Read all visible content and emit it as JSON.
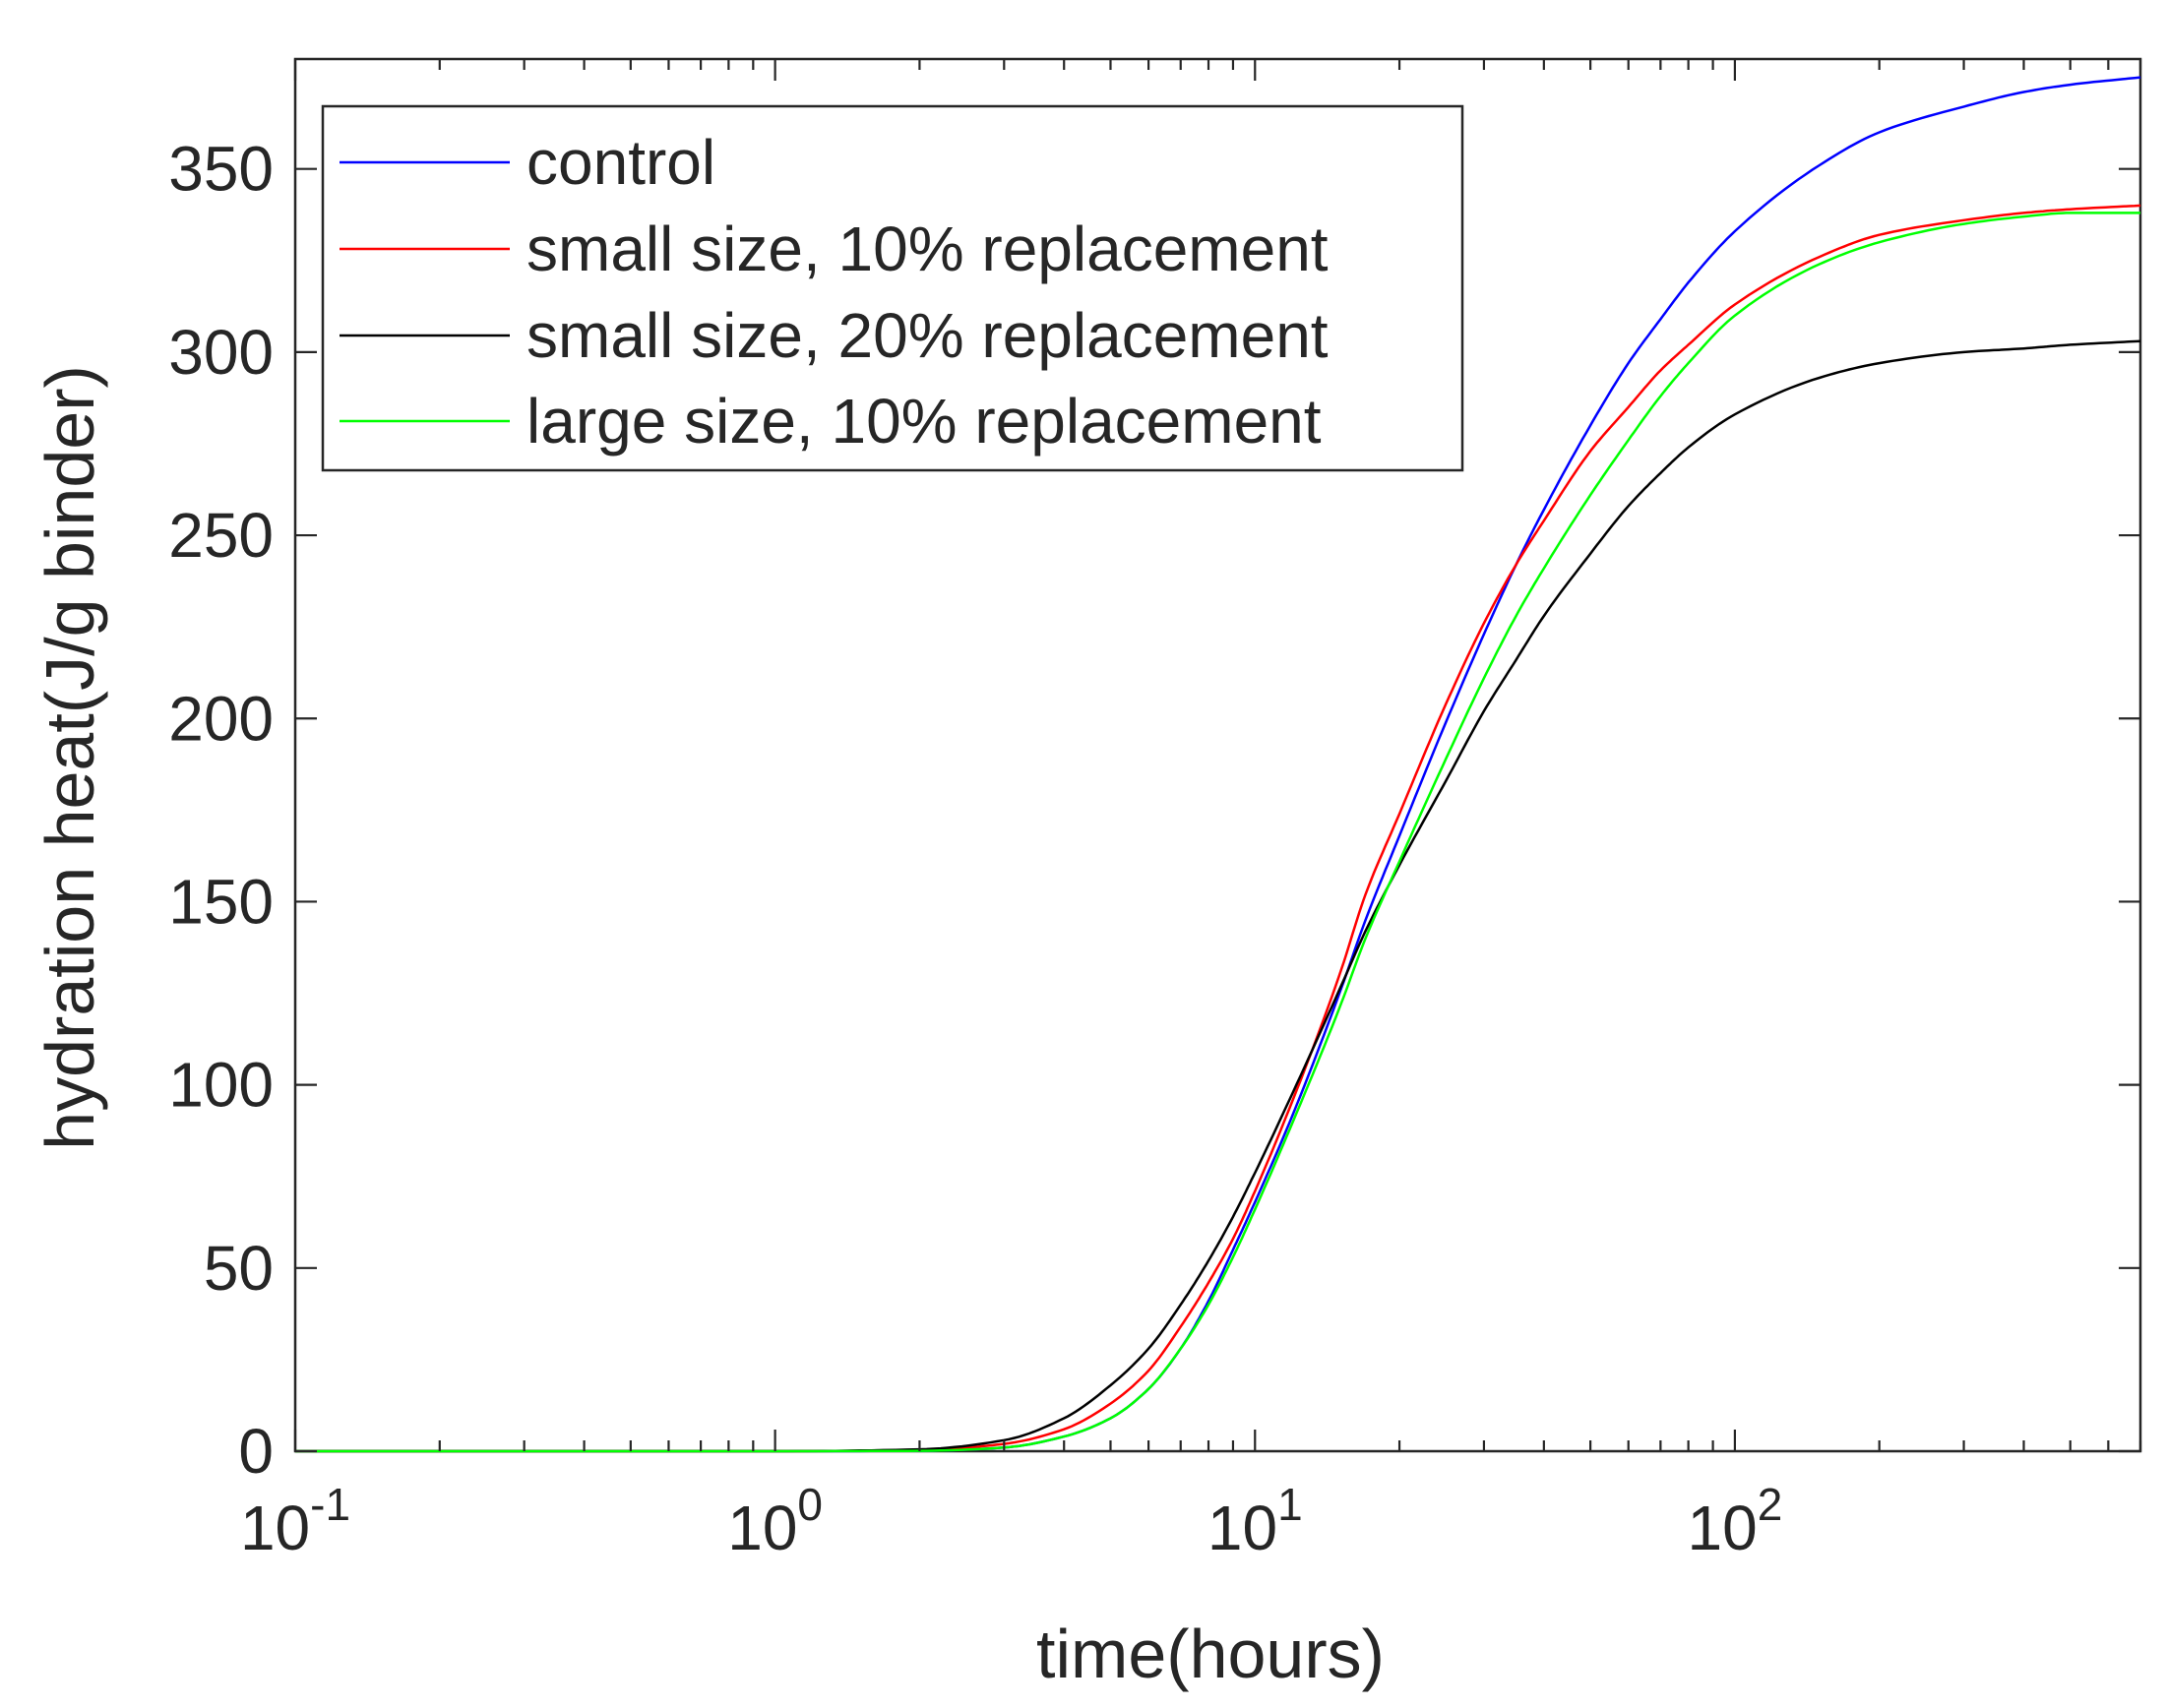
{
  "chart_data": {
    "type": "line",
    "title": "",
    "xlabel": "time(hours)",
    "ylabel": "hydration heat(J/g binder)",
    "xscale": "log",
    "xlim": [
      0.1,
      700
    ],
    "ylim": [
      0,
      380
    ],
    "grid": false,
    "legend_position": "top-left",
    "x_ticks": [
      {
        "value": 0.1,
        "base": "10",
        "exp": "-1"
      },
      {
        "value": 1,
        "base": "10",
        "exp": "0"
      },
      {
        "value": 10,
        "base": "10",
        "exp": "1"
      },
      {
        "value": 100,
        "base": "10",
        "exp": "2"
      }
    ],
    "y_ticks": [
      {
        "value": 0,
        "label": "0"
      },
      {
        "value": 50,
        "label": "50"
      },
      {
        "value": 100,
        "label": "100"
      },
      {
        "value": 150,
        "label": "150"
      },
      {
        "value": 200,
        "label": "200"
      },
      {
        "value": 250,
        "label": "250"
      },
      {
        "value": 300,
        "label": "300"
      },
      {
        "value": 350,
        "label": "350"
      }
    ],
    "x": [
      0.1,
      1,
      2,
      3,
      4,
      5,
      6,
      7,
      8,
      9,
      10,
      12,
      15,
      17,
      20,
      25,
      30,
      35,
      40,
      50,
      60,
      70,
      80,
      100,
      150,
      200,
      300,
      400,
      500,
      700
    ],
    "series": [
      {
        "name": "control",
        "color": "#0000ff",
        "values": [
          0,
          0,
          0.1,
          1,
          4,
          9,
          17,
          28,
          41,
          55,
          68,
          92,
          125,
          145,
          168,
          199,
          223,
          242,
          257,
          280,
          297,
          309,
          319,
          333,
          351,
          360,
          367,
          371,
          373,
          375
        ]
      },
      {
        "name": "small size, 10% replacement",
        "color": "#ff0000",
        "values": [
          0,
          0,
          0.3,
          2,
          6,
          13,
          22,
          34,
          46,
          58,
          71,
          96,
          130,
          152,
          174,
          204,
          226,
          242,
          254,
          273,
          285,
          295,
          302,
          313,
          326,
          332,
          336,
          338,
          339,
          340
        ]
      },
      {
        "name": "small size, 20% replacement",
        "color": "#000000",
        "values": [
          0,
          0,
          0.5,
          3,
          9,
          18,
          28,
          40,
          52,
          64,
          76,
          98,
          126,
          142,
          160,
          183,
          202,
          216,
          228,
          245,
          258,
          267,
          274,
          283,
          293,
          297,
          300,
          301,
          302,
          303
        ]
      },
      {
        "name": "large size, 10% replacement",
        "color": "#00ff00",
        "values": [
          0,
          0,
          0.1,
          1,
          4,
          9,
          17,
          28,
          40,
          53,
          66,
          90,
          121,
          140,
          161,
          189,
          211,
          228,
          241,
          261,
          276,
          288,
          297,
          310,
          324,
          330,
          335,
          337,
          338,
          338
        ]
      }
    ]
  }
}
